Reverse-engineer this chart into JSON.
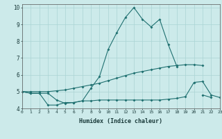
{
  "xlabel": "Humidex (Indice chaleur)",
  "x": [
    0,
    1,
    2,
    3,
    4,
    5,
    6,
    7,
    8,
    9,
    10,
    11,
    12,
    13,
    14,
    15,
    16,
    17,
    18,
    19,
    20,
    21,
    22,
    23
  ],
  "line1": [
    5.0,
    4.9,
    4.9,
    4.9,
    4.5,
    4.3,
    4.35,
    4.45,
    5.2,
    5.9,
    7.5,
    8.5,
    9.4,
    10.0,
    9.3,
    8.85,
    9.3,
    7.8,
    6.5,
    null,
    null,
    4.8,
    4.65,
    null
  ],
  "line2": [
    5.0,
    5.0,
    5.0,
    5.0,
    5.05,
    5.1,
    5.2,
    5.3,
    5.4,
    5.5,
    5.65,
    5.8,
    5.95,
    6.1,
    6.2,
    6.3,
    6.4,
    6.5,
    6.55,
    6.6,
    6.6,
    6.55,
    null,
    null
  ],
  "line3": [
    5.0,
    4.9,
    4.9,
    4.2,
    4.2,
    4.35,
    4.35,
    4.45,
    4.45,
    4.5,
    4.5,
    4.5,
    4.5,
    4.5,
    4.5,
    4.5,
    4.5,
    4.55,
    4.6,
    4.7,
    5.55,
    5.6,
    4.8,
    4.65
  ],
  "line_color": "#1f7070",
  "bg_color": "#cceaea",
  "grid_color": "#aad4d4",
  "ylim": [
    4.0,
    10.2
  ],
  "xlim": [
    0,
    23
  ]
}
